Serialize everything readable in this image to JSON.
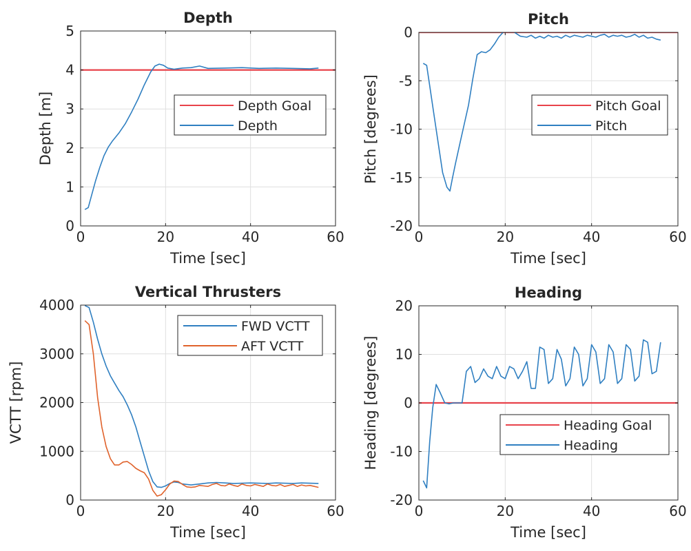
{
  "chart_data": [
    {
      "type": "line",
      "title": "Depth",
      "xlabel": "Time [sec]",
      "ylabel": "Depth [m]",
      "xlim": [
        0,
        60
      ],
      "ylim": [
        0,
        5
      ],
      "xticks": [
        0,
        20,
        40,
        60
      ],
      "yticks": [
        0,
        1,
        2,
        3,
        4,
        5
      ],
      "grid": true,
      "legend_position": "right-middle",
      "series": [
        {
          "name": "Depth Goal",
          "color": "#e8424a",
          "x": [
            0,
            60
          ],
          "y": [
            4,
            4
          ]
        },
        {
          "name": "Depth",
          "color": "#2f7fc1",
          "x": [
            1,
            1.8,
            2.5,
            3.5,
            4.5,
            5.5,
            6.5,
            7.5,
            9,
            10.5,
            12,
            13.5,
            15,
            16.5,
            17.5,
            18.5,
            19.5,
            20.5,
            22,
            24,
            26,
            28,
            30,
            34,
            38,
            42,
            46,
            50,
            54,
            56
          ],
          "y": [
            0.42,
            0.47,
            0.75,
            1.15,
            1.5,
            1.8,
            2.02,
            2.18,
            2.38,
            2.62,
            2.92,
            3.25,
            3.62,
            3.95,
            4.1,
            4.15,
            4.12,
            4.05,
            4.02,
            4.05,
            4.06,
            4.1,
            4.04,
            4.05,
            4.06,
            4.04,
            4.05,
            4.04,
            4.03,
            4.05
          ]
        }
      ]
    },
    {
      "type": "line",
      "title": "Pitch",
      "xlabel": "Time [sec]",
      "ylabel": "Pitch [degrees]",
      "xlim": [
        0,
        60
      ],
      "ylim": [
        -20,
        0
      ],
      "xticks": [
        0,
        20,
        40,
        60
      ],
      "yticks": [
        -20,
        -15,
        -10,
        -5,
        0
      ],
      "grid": true,
      "legend_position": "right-middle",
      "series": [
        {
          "name": "Pitch Goal",
          "color": "#e8424a",
          "x": [
            0,
            60
          ],
          "y": [
            0,
            0
          ]
        },
        {
          "name": "Pitch",
          "color": "#2f7fc1",
          "x": [
            1,
            1.8,
            2.5,
            3.5,
            4.5,
            5.5,
            6.5,
            7.2,
            7.8,
            8.5,
            9.5,
            10.5,
            11.5,
            12.5,
            13.5,
            14.5,
            15.5,
            16.5,
            17.5,
            18.5,
            19.5,
            20.5,
            21.5,
            22.5,
            23.5,
            25,
            26,
            27,
            28,
            29,
            30,
            31,
            32,
            33,
            34,
            35,
            36,
            37,
            38,
            39,
            40,
            41,
            42,
            43,
            44,
            45,
            46,
            47,
            48,
            49,
            50,
            51,
            52,
            53,
            54,
            55,
            56
          ],
          "y": [
            -3.2,
            -3.4,
            -5.5,
            -8.5,
            -11.5,
            -14.5,
            -16.0,
            -16.4,
            -15.0,
            -13.5,
            -11.5,
            -9.5,
            -7.5,
            -4.8,
            -2.3,
            -2.0,
            -2.1,
            -1.8,
            -1.2,
            -0.5,
            0.0,
            0.3,
            0.2,
            -0.1,
            -0.4,
            -0.5,
            -0.3,
            -0.6,
            -0.4,
            -0.6,
            -0.3,
            -0.5,
            -0.4,
            -0.6,
            -0.3,
            -0.5,
            -0.3,
            -0.4,
            -0.5,
            -0.3,
            -0.4,
            -0.5,
            -0.3,
            -0.2,
            -0.5,
            -0.3,
            -0.4,
            -0.3,
            -0.5,
            -0.4,
            -0.2,
            -0.5,
            -0.3,
            -0.6,
            -0.5,
            -0.7,
            -0.8
          ]
        }
      ]
    },
    {
      "type": "line",
      "title": "Vertical Thrusters",
      "xlabel": "Time [sec]",
      "ylabel": "VCTT [rpm]",
      "xlim": [
        0,
        60
      ],
      "ylim": [
        0,
        4000
      ],
      "xticks": [
        0,
        20,
        40,
        60
      ],
      "yticks": [
        0,
        1000,
        2000,
        3000,
        4000
      ],
      "grid": true,
      "legend_position": "top-right",
      "series": [
        {
          "name": "FWD VCTT",
          "color": "#2f7fc1",
          "x": [
            1,
            2,
            3,
            4,
            5,
            6,
            7,
            8,
            9,
            10,
            11,
            12,
            13,
            14,
            15,
            16,
            17,
            18,
            19,
            20,
            21,
            22,
            23,
            24,
            26,
            28,
            30,
            32,
            34,
            36,
            38,
            40,
            42,
            44,
            46,
            48,
            50,
            52,
            54,
            56
          ],
          "y": [
            3990,
            3950,
            3650,
            3300,
            3000,
            2750,
            2550,
            2400,
            2250,
            2120,
            1950,
            1750,
            1500,
            1200,
            900,
            600,
            380,
            270,
            260,
            290,
            340,
            370,
            360,
            330,
            310,
            330,
            350,
            360,
            350,
            340,
            345,
            350,
            345,
            340,
            350,
            345,
            340,
            350,
            345,
            340
          ]
        },
        {
          "name": "AFT VCTT",
          "color": "#e0622b",
          "x": [
            1,
            2,
            3,
            4,
            5,
            6,
            7,
            8,
            9,
            10,
            11,
            12,
            13,
            14,
            15,
            16,
            17,
            18,
            19,
            20,
            21,
            22,
            23,
            24,
            25,
            26,
            27,
            28,
            29,
            30,
            31,
            32,
            33,
            34,
            35,
            36,
            37,
            38,
            39,
            40,
            41,
            42,
            43,
            44,
            45,
            46,
            47,
            48,
            49,
            50,
            51,
            52,
            53,
            54,
            55,
            56
          ],
          "y": [
            3680,
            3600,
            3000,
            2100,
            1500,
            1100,
            850,
            720,
            720,
            780,
            790,
            730,
            650,
            600,
            560,
            430,
            200,
            80,
            110,
            210,
            330,
            390,
            380,
            320,
            270,
            260,
            270,
            300,
            290,
            280,
            320,
            340,
            300,
            290,
            330,
            300,
            280,
            330,
            300,
            290,
            320,
            300,
            280,
            330,
            300,
            290,
            320,
            280,
            300,
            320,
            280,
            310,
            290,
            300,
            280,
            260
          ]
        }
      ]
    },
    {
      "type": "line",
      "title": "Heading",
      "xlabel": "Time [sec]",
      "ylabel": "Heading [degrees]",
      "xlim": [
        0,
        60
      ],
      "ylim": [
        -20,
        20
      ],
      "xticks": [
        0,
        20,
        40,
        60
      ],
      "yticks": [
        -20,
        -10,
        0,
        10,
        20
      ],
      "grid": true,
      "legend_position": "bottom-right",
      "series": [
        {
          "name": "Heading Goal",
          "color": "#e8424a",
          "x": [
            0,
            60
          ],
          "y": [
            0,
            0
          ]
        },
        {
          "name": "Heading",
          "color": "#2f7fc1",
          "x": [
            1,
            1.8,
            2.5,
            3.2,
            4,
            5,
            6,
            7,
            8,
            9,
            10,
            11,
            12,
            13,
            14,
            15,
            16,
            17,
            18,
            19,
            20,
            21,
            22,
            23,
            24,
            25,
            26,
            27,
            28,
            29,
            30,
            31,
            32,
            33,
            34,
            35,
            36,
            37,
            38,
            39,
            40,
            41,
            42,
            43,
            44,
            45,
            46,
            47,
            48,
            49,
            50,
            51,
            52,
            53,
            54,
            55,
            56
          ],
          "y": [
            -16,
            -17.5,
            -8,
            -1,
            3.8,
            2.0,
            0.0,
            -0.2,
            0.0,
            0.0,
            0.0,
            6.5,
            7.5,
            4.2,
            5.0,
            7.0,
            5.5,
            5.0,
            7.5,
            5.5,
            5.0,
            7.5,
            7.0,
            5.0,
            6.5,
            8.5,
            3.0,
            3.0,
            11.5,
            11.0,
            4.0,
            5.0,
            11.0,
            9.0,
            3.5,
            5.0,
            11.5,
            10.0,
            3.5,
            5.0,
            12.0,
            10.5,
            4.0,
            5.0,
            12.0,
            10.5,
            4.0,
            5.0,
            12.0,
            11.0,
            4.5,
            5.5,
            13.0,
            12.5,
            6.0,
            6.5,
            12.5
          ]
        }
      ]
    }
  ]
}
